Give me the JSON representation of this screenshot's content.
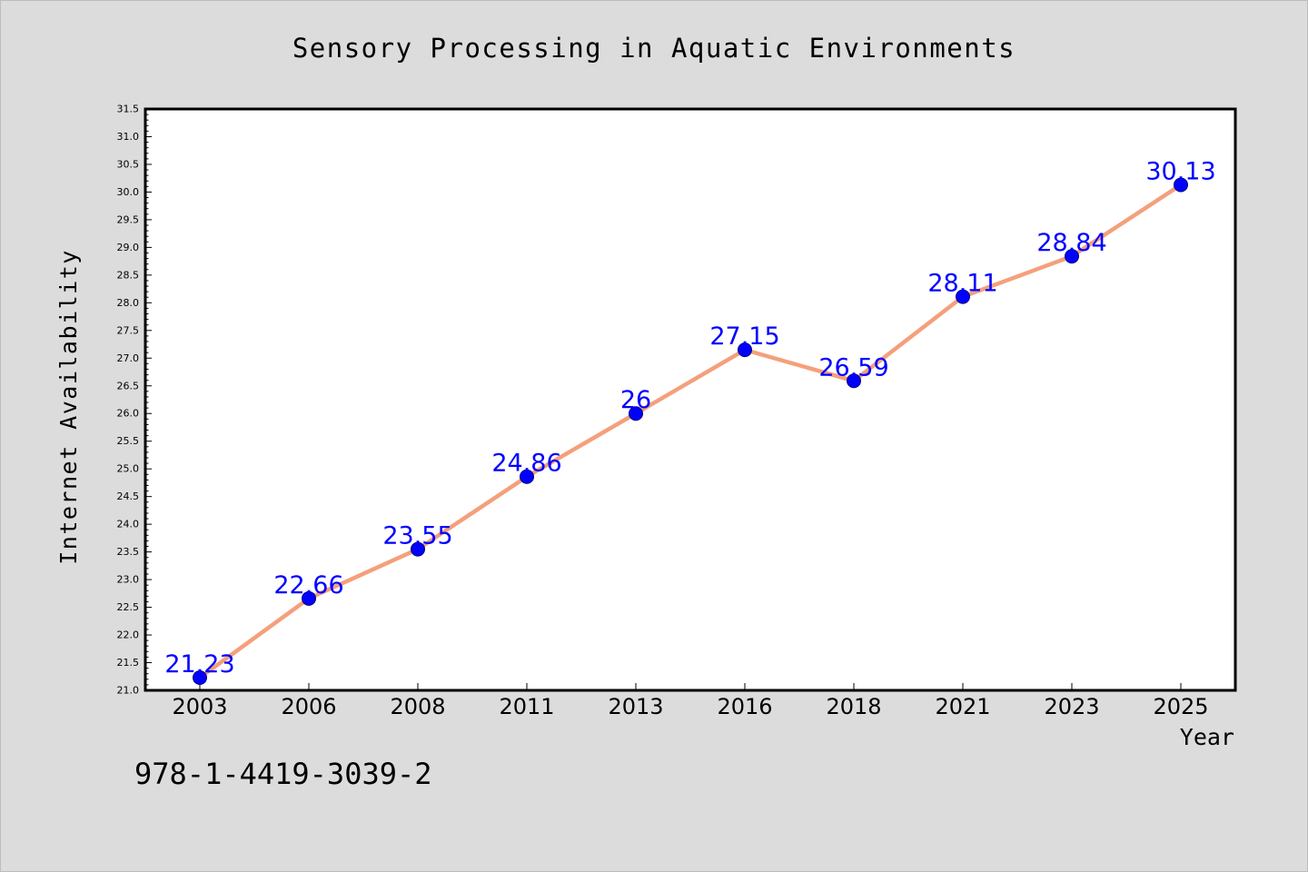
{
  "chart_data": {
    "type": "line",
    "title": "Sensory Processing in Aquatic Environments",
    "xlabel": "Year",
    "ylabel": "Internet Availability",
    "categories": [
      "2003",
      "2006",
      "2008",
      "2011",
      "2013",
      "2016",
      "2018",
      "2021",
      "2023",
      "2025"
    ],
    "series": [
      {
        "values": [
          21.23,
          22.66,
          23.55,
          24.86,
          26,
          27.15,
          26.59,
          28.11,
          28.84,
          30.13
        ],
        "data_labels": [
          "21.23",
          "22.66",
          "23.55",
          "24.86",
          "26",
          "27.15",
          "26.59",
          "28.11",
          "28.84",
          "30.13"
        ]
      }
    ],
    "ylim": [
      21.0,
      31.5
    ],
    "y_tick_step": 0.5,
    "grid": false,
    "legend": "none",
    "colors": {
      "line": "#f4a07c",
      "marker": "#0000ff",
      "data_label": "#0000ff",
      "background": "#dcdcdc",
      "plot_area": "#ffffff",
      "axes": "#000000"
    }
  },
  "footer_text": "978-1-4419-3039-2"
}
